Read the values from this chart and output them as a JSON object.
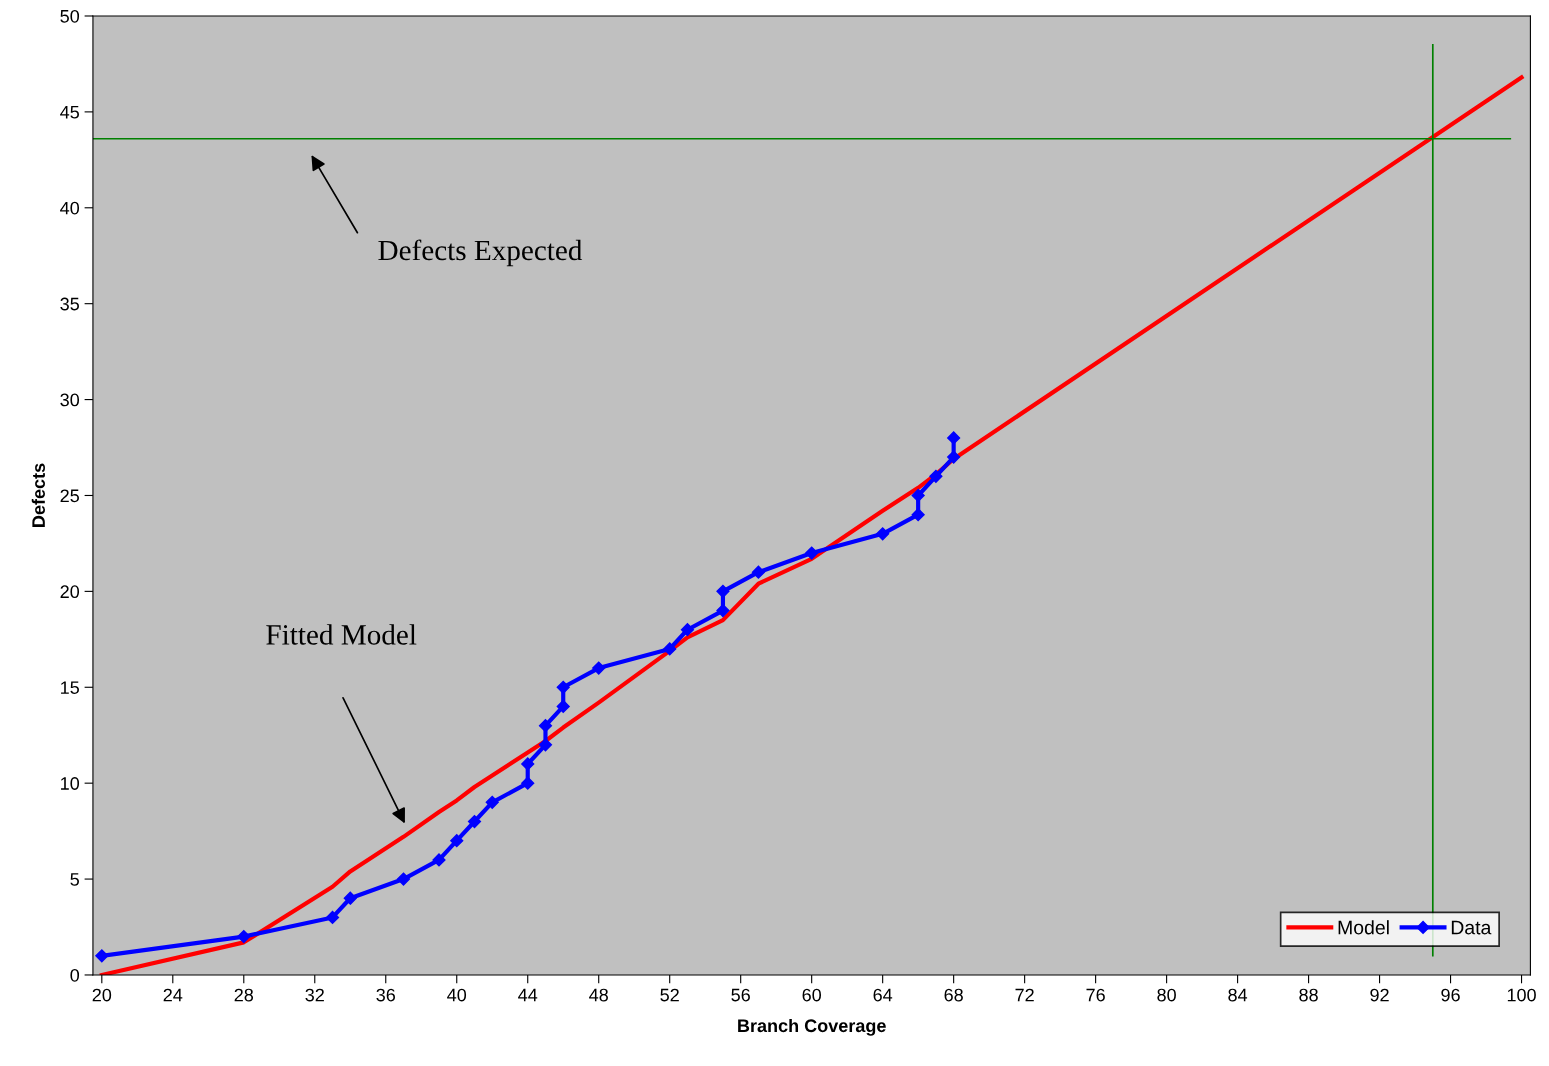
{
  "chart_data": {
    "type": "line",
    "xlabel": "Branch Coverage",
    "ylabel": "Defects",
    "xlim": [
      19.5,
      100.5
    ],
    "xticks": [
      20,
      24,
      28,
      32,
      36,
      40,
      44,
      48,
      52,
      56,
      60,
      64,
      68,
      72,
      76,
      80,
      84,
      88,
      92,
      96,
      100
    ],
    "ylim": [
      0,
      50
    ],
    "yticks": [
      0,
      5,
      10,
      15,
      20,
      25,
      30,
      35,
      40,
      45,
      50
    ],
    "grid": false,
    "legend": "bottom right",
    "series": [
      {
        "name": "Model",
        "color": "#ff0000",
        "marker": "none",
        "x": [
          20,
          28,
          33,
          34,
          37,
          39,
          40,
          41,
          42,
          44,
          45,
          46,
          48,
          52,
          53,
          55,
          57,
          60,
          64,
          66,
          67,
          68,
          100
        ],
        "values": [
          0,
          1.7,
          4.6,
          5.4,
          7.2,
          8.5,
          9.1,
          9.8,
          10.4,
          11.6,
          12.2,
          12.9,
          14.2,
          16.9,
          17.6,
          18.5,
          20.4,
          21.7,
          24.2,
          25.4,
          26.1,
          26.9,
          46.8
        ]
      },
      {
        "name": "Data",
        "color": "#0000ff",
        "marker": "diamond",
        "x": [
          20,
          28,
          33,
          34,
          37,
          39,
          40,
          41,
          42,
          44,
          44,
          45,
          45,
          46,
          46,
          48,
          52,
          53,
          55,
          55,
          57,
          60,
          64,
          66,
          66,
          67,
          68,
          68
        ],
        "values": [
          1,
          2,
          3,
          4,
          5,
          6,
          7,
          8,
          9,
          10,
          11,
          12,
          13,
          14,
          15,
          16,
          17,
          18,
          19,
          20,
          21,
          22,
          23,
          24,
          25,
          26,
          27,
          28
        ]
      }
    ],
    "ref_lines": [
      {
        "axis": "y",
        "value": 43.6,
        "color": "#008000"
      },
      {
        "axis": "x",
        "value": 95,
        "color": "#008000"
      }
    ],
    "annotations": [
      "Defects Expected",
      "Fitted Model"
    ]
  }
}
